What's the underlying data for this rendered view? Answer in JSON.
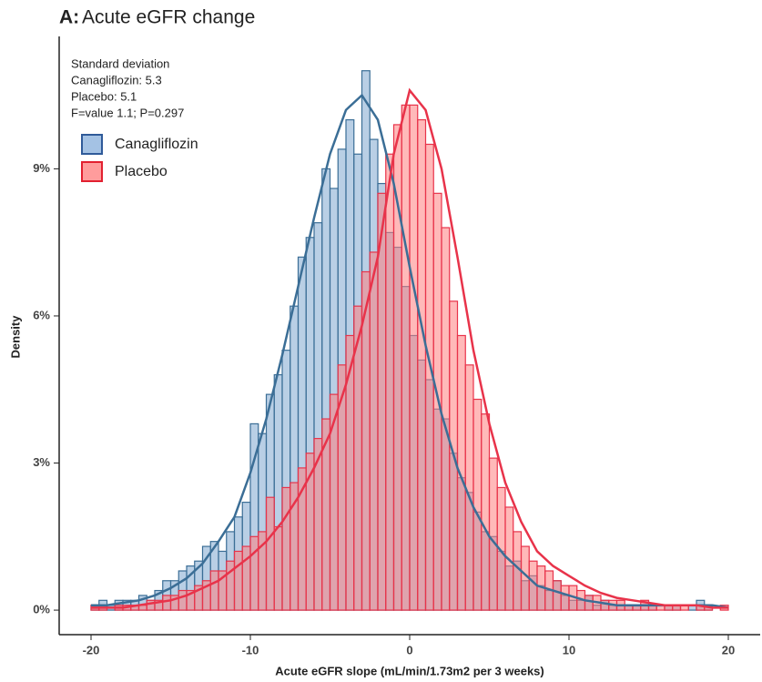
{
  "chart_data": {
    "type": "histogram",
    "panel_label": "A:",
    "title": "Acute eGFR change",
    "x_label": "Acute eGFR slope (mL/min/1.73m2 per 3 weeks)",
    "y_label": "Density",
    "annotations": [
      "Standard deviation",
      "Canagliflozin: 5.3",
      "Placebo: 5.1",
      "F=value 1.1; P=0.297"
    ],
    "xlim": [
      -22,
      22
    ],
    "ylim": [
      -0.5,
      11.7
    ],
    "xticks": [
      -20,
      -10,
      0,
      10,
      20
    ],
    "yticks": [
      {
        "value": 0,
        "label": "0%"
      },
      {
        "value": 3,
        "label": "3%"
      },
      {
        "value": 6,
        "label": "6%"
      },
      {
        "value": 9,
        "label": "9%"
      }
    ],
    "legend": "upper left",
    "bins": [
      -20,
      -19.5,
      -19,
      -18.5,
      -18,
      -17.5,
      -17,
      -16.5,
      -16,
      -15.5,
      -15,
      -14.5,
      -14,
      -13.5,
      -13,
      -12.5,
      -12,
      -11.5,
      -11,
      -10.5,
      -10,
      -9.5,
      -9,
      -8.5,
      -8,
      -7.5,
      -7,
      -6.5,
      -6,
      -5.5,
      -5,
      -4.5,
      -4,
      -3.5,
      -3,
      -2.5,
      -2,
      -1.5,
      -1,
      -0.5,
      0,
      0.5,
      1,
      1.5,
      2,
      2.5,
      3,
      3.5,
      4,
      4.5,
      5,
      5.5,
      6,
      6.5,
      7,
      7.5,
      8,
      8.5,
      9,
      9.5,
      10,
      10.5,
      11,
      11.5,
      12,
      12.5,
      13,
      13.5,
      14,
      14.5,
      15,
      15.5,
      16,
      16.5,
      17,
      17.5,
      18,
      18.5,
      19,
      19.5,
      20
    ],
    "density_x": [
      -20,
      -19,
      -18,
      -17,
      -16,
      -15,
      -14,
      -13,
      -12,
      -11,
      -10,
      -9,
      -8,
      -7,
      -6,
      -5,
      -4,
      -3,
      -2,
      -1,
      0,
      1,
      2,
      3,
      4,
      5,
      6,
      7,
      8,
      9,
      10,
      11,
      12,
      13,
      14,
      15,
      16,
      17,
      18,
      19,
      20
    ],
    "series": [
      {
        "name": "Canagliflozin",
        "color": "#3b6e96",
        "fill": "#7fa8cf",
        "legend_fill": "#a4c2e4",
        "legend_stroke": "#2f5a99",
        "values": [
          0.1,
          0.2,
          0.1,
          0.2,
          0.2,
          0.2,
          0.3,
          0.2,
          0.4,
          0.6,
          0.6,
          0.8,
          0.9,
          1.0,
          1.3,
          1.4,
          1.2,
          1.6,
          1.9,
          2.2,
          3.8,
          3.6,
          4.4,
          4.8,
          5.3,
          6.2,
          7.2,
          7.6,
          7.9,
          9.0,
          8.6,
          9.4,
          10.0,
          9.3,
          11.0,
          9.6,
          8.7,
          7.7,
          7.4,
          6.6,
          5.6,
          5.1,
          4.7,
          4.1,
          3.9,
          3.2,
          2.7,
          2.4,
          2.0,
          1.6,
          1.5,
          1.2,
          0.9,
          1.0,
          0.6,
          0.7,
          0.5,
          0.4,
          0.6,
          0.3,
          0.2,
          0.2,
          0.3,
          0.1,
          0.2,
          0.1,
          0.1,
          0.1,
          0.1,
          0.1,
          0.1,
          0.0,
          0.1,
          0.1,
          0.0,
          0.1,
          0.2,
          0.1,
          0.0,
          0.0
        ],
        "density": [
          0.1,
          0.1,
          0.15,
          0.2,
          0.3,
          0.45,
          0.65,
          0.95,
          1.4,
          1.9,
          2.8,
          3.9,
          5.2,
          6.6,
          8.0,
          9.3,
          10.2,
          10.5,
          10.0,
          8.7,
          7.0,
          5.4,
          4.0,
          2.9,
          2.1,
          1.5,
          1.1,
          0.8,
          0.5,
          0.4,
          0.3,
          0.2,
          0.15,
          0.1,
          0.1,
          0.1,
          0.1,
          0.1,
          0.1,
          0.1,
          0.05
        ]
      },
      {
        "name": "Placebo",
        "color": "#e8334a",
        "fill": "#ff8080",
        "legend_fill": "#ff9c9c",
        "legend_stroke": "#e22030",
        "values": [
          0.1,
          0.1,
          0.0,
          0.1,
          0.1,
          0.1,
          0.1,
          0.2,
          0.2,
          0.3,
          0.3,
          0.4,
          0.4,
          0.5,
          0.6,
          0.8,
          0.8,
          1.0,
          1.2,
          1.3,
          1.5,
          1.6,
          2.3,
          1.7,
          2.5,
          2.6,
          2.9,
          3.2,
          3.5,
          3.9,
          4.4,
          5.0,
          5.6,
          6.2,
          6.9,
          7.3,
          8.5,
          9.3,
          9.9,
          10.3,
          10.3,
          10.0,
          9.5,
          8.5,
          7.8,
          6.3,
          5.6,
          5.0,
          4.3,
          4.0,
          3.1,
          2.5,
          2.1,
          1.6,
          1.3,
          1.0,
          0.9,
          0.8,
          0.6,
          0.5,
          0.5,
          0.4,
          0.3,
          0.3,
          0.2,
          0.2,
          0.2,
          0.1,
          0.1,
          0.2,
          0.1,
          0.1,
          0.1,
          0.1,
          0.1,
          0.0,
          0.1,
          0.1,
          0.0,
          0.1
        ],
        "density": [
          0.05,
          0.05,
          0.05,
          0.1,
          0.15,
          0.2,
          0.3,
          0.45,
          0.6,
          0.85,
          1.1,
          1.4,
          1.8,
          2.3,
          2.9,
          3.6,
          4.6,
          5.8,
          7.2,
          9.3,
          10.6,
          10.2,
          9.0,
          7.2,
          5.3,
          3.8,
          2.6,
          1.8,
          1.2,
          0.9,
          0.7,
          0.5,
          0.35,
          0.25,
          0.2,
          0.15,
          0.1,
          0.1,
          0.1,
          0.05,
          0.05
        ]
      }
    ]
  }
}
